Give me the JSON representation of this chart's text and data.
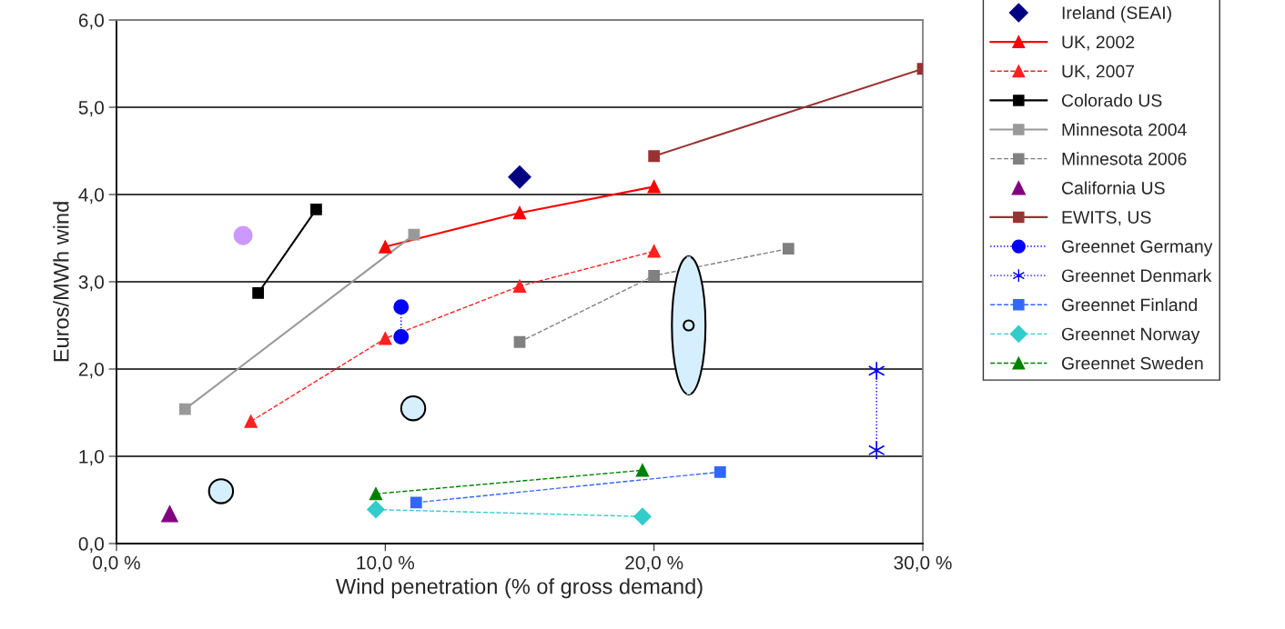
{
  "chart_data": {
    "type": "line",
    "xlabel": "Wind penetration (% of gross demand)",
    "ylabel": "Euros/MWh wind",
    "xlim": [
      0,
      30
    ],
    "xticks": [
      {
        "value": 0,
        "label": "0,0 %"
      },
      {
        "value": 10,
        "label": "10,0 %"
      },
      {
        "value": 20,
        "label": "20,0 %"
      },
      {
        "value": 30,
        "label": "30,0 %"
      }
    ],
    "ylim": [
      0,
      6
    ],
    "yticks": [
      {
        "value": 0,
        "label": "0,0"
      },
      {
        "value": 1,
        "label": "1,0"
      },
      {
        "value": 2,
        "label": "2,0"
      },
      {
        "value": 3,
        "label": "3,0"
      },
      {
        "value": 4,
        "label": "4,0"
      },
      {
        "value": 5,
        "label": "5,0"
      },
      {
        "value": 6,
        "label": "6,0"
      }
    ],
    "grid": "y",
    "legend": "right",
    "series": [
      {
        "name": "Ireland (SEAI)",
        "type": "scatter",
        "color": "#000080",
        "marker": "diamond",
        "x": [
          15
        ],
        "values": [
          4.2
        ]
      },
      {
        "name": "UK, 2002",
        "color": "#ff0000",
        "marker": "triangle",
        "line_style": "solid",
        "x": [
          10,
          15,
          20
        ],
        "values": [
          3.4,
          3.79,
          4.09
        ]
      },
      {
        "name": "UK, 2007",
        "color": "#ff2020",
        "marker": "triangle",
        "line_style": "dashed",
        "x": [
          5,
          10,
          15,
          20
        ],
        "values": [
          1.4,
          2.35,
          2.95,
          3.35
        ]
      },
      {
        "name": "Colorado US",
        "color": "#000000",
        "marker": "square",
        "line_style": "solid",
        "x": [
          5.27,
          7.43
        ],
        "values": [
          2.87,
          3.83
        ]
      },
      {
        "name": "Minnesota 2004",
        "color": "#999999",
        "marker": "square",
        "line_style": "solid",
        "x": [
          2.55,
          11.07
        ],
        "values": [
          1.54,
          3.54
        ]
      },
      {
        "name": "Minnesota 2006",
        "color": "#808080",
        "marker": "square",
        "line_style": "dashed",
        "x": [
          15,
          20,
          25
        ],
        "values": [
          2.31,
          3.07,
          3.38
        ]
      },
      {
        "name": "California US",
        "type": "scatter",
        "color": "#800080",
        "marker": "triangle",
        "x": [
          1.98
        ],
        "values": [
          0.34
        ]
      },
      {
        "type": "scatter",
        "color": "#cc99ff",
        "marker": "circle",
        "x": [
          4.71
        ],
        "values": [
          3.53
        ]
      },
      {
        "name": "EWITS, US",
        "color": "#993333",
        "marker": "square",
        "line_style": "solid",
        "x": [
          20,
          30
        ],
        "values": [
          4.44,
          5.44
        ]
      },
      {
        "name": "Greennet Germany",
        "color": "#0000ff",
        "marker": "circle",
        "line_style": "dotted",
        "x": [
          10.59,
          10.59
        ],
        "values": [
          2.71,
          2.37
        ]
      },
      {
        "name": "Greennet Denmark",
        "color": "#0000ff",
        "marker": "cross",
        "line_style": "dotted",
        "x": [
          28.28,
          28.28
        ],
        "values": [
          1.98,
          1.07
        ]
      },
      {
        "name": "Greennet Finland",
        "color": "#3366ff",
        "marker": "square",
        "line_style": "dashed",
        "x": [
          11.15,
          22.46
        ],
        "values": [
          0.47,
          0.82
        ]
      },
      {
        "name": "Greennet Norway",
        "color": "#33cccc",
        "marker": "diamond",
        "line_style": "dashed",
        "x": [
          9.65,
          19.57
        ],
        "values": [
          0.39,
          0.31
        ]
      },
      {
        "name": "Greennet Sweden",
        "color": "#008000",
        "marker": "triangle",
        "line_style": "dashed",
        "x": [
          9.65,
          19.57
        ],
        "values": [
          0.57,
          0.84
        ]
      },
      {
        "type": "scatter",
        "color": "#d6efff",
        "marker": "circle",
        "x": [
          3.89,
          11.04
        ],
        "values": [
          0.6,
          1.55
        ]
      },
      {
        "type": "scatter",
        "color": "#d6efff",
        "marker": "circle",
        "x": [
          21.29
        ],
        "values": [
          2.5
        ],
        "errors": [
          [
            1.71,
            3.29
          ]
        ]
      }
    ]
  }
}
